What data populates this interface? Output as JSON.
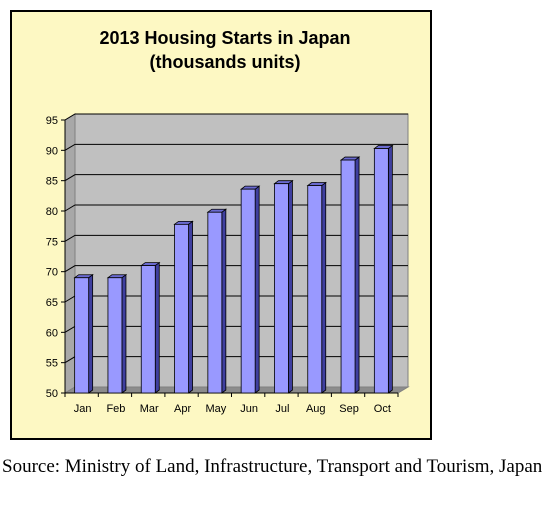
{
  "chart_data": {
    "type": "bar",
    "title_line1": "2013 Housing Starts in Japan",
    "title_line2": "(thousands units)",
    "categories": [
      "Jan",
      "Feb",
      "Mar",
      "Apr",
      "May",
      "Jun",
      "Jul",
      "Aug",
      "Sep",
      "Oct"
    ],
    "values": [
      69.0,
      69.0,
      71.0,
      77.8,
      79.8,
      83.6,
      84.5,
      84.2,
      88.4,
      90.3
    ],
    "ylim": [
      50,
      95
    ],
    "yticks": [
      "50",
      "55",
      "60",
      "65",
      "70",
      "75",
      "80",
      "85",
      "90",
      "95"
    ],
    "grid": true,
    "legend": "none",
    "colors": {
      "panel_background": "#fdf8c3",
      "plot_background": "#c0c0c0",
      "bar_front": "#9999ff",
      "bar_side": "#3f3f9f",
      "bar_top": "#6a6ad0"
    }
  },
  "source": "Source: Ministry of Land, Infrastructure, Transport and Tourism, Japan"
}
